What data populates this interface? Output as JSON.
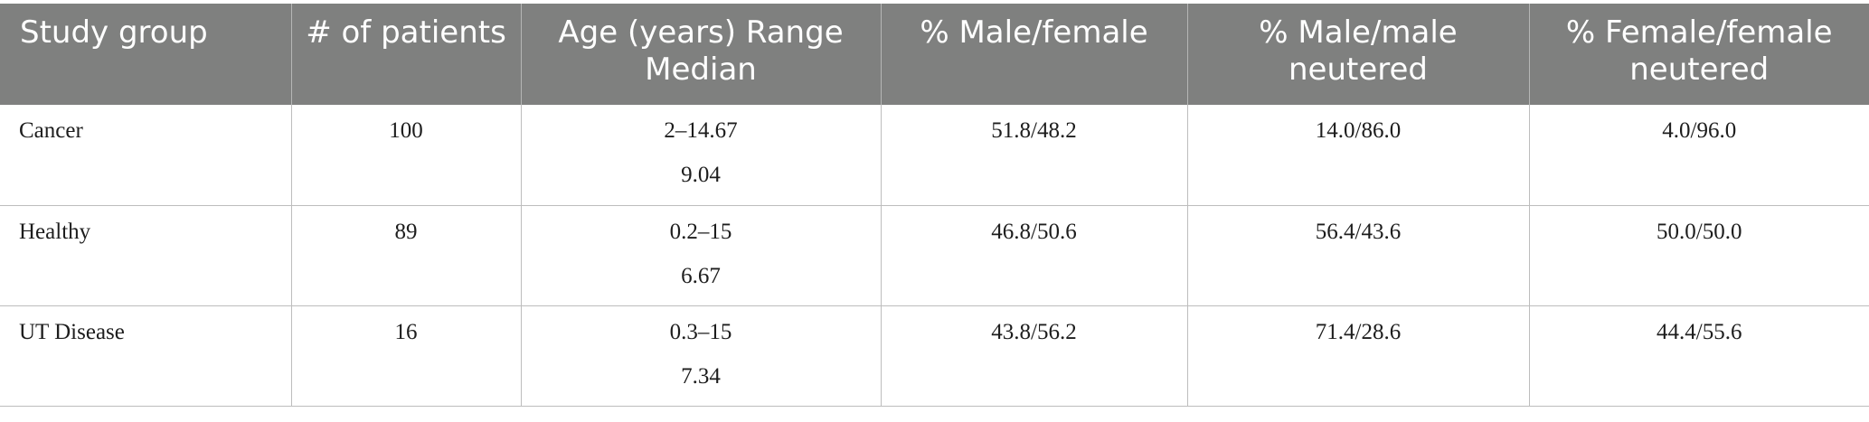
{
  "table": {
    "headers": [
      "Study group",
      "# of patients",
      "Age (years) Range Median",
      "% Male/female",
      "% Male/male neutered",
      "% Female/female neutered"
    ],
    "rows": [
      {
        "group": "Cancer",
        "patients": "100",
        "age_range": "2–14.67",
        "age_median": "9.04",
        "male_female": "51.8/48.2",
        "male_neutered": "14.0/86.0",
        "female_neutered": "4.0/96.0"
      },
      {
        "group": "Healthy",
        "patients": "89",
        "age_range": "0.2–15",
        "age_median": "6.67",
        "male_female": "46.8/50.6",
        "male_neutered": "56.4/43.6",
        "female_neutered": "50.0/50.0"
      },
      {
        "group": "UT Disease",
        "patients": "16",
        "age_range": "0.3–15",
        "age_median": "7.34",
        "male_female": "43.8/56.2",
        "male_neutered": "71.4/28.6",
        "female_neutered": "44.4/55.6"
      }
    ]
  },
  "colors": {
    "header_bg": "#7f807f",
    "header_text": "#ffffff",
    "grid_line": "#bdbdbd"
  }
}
